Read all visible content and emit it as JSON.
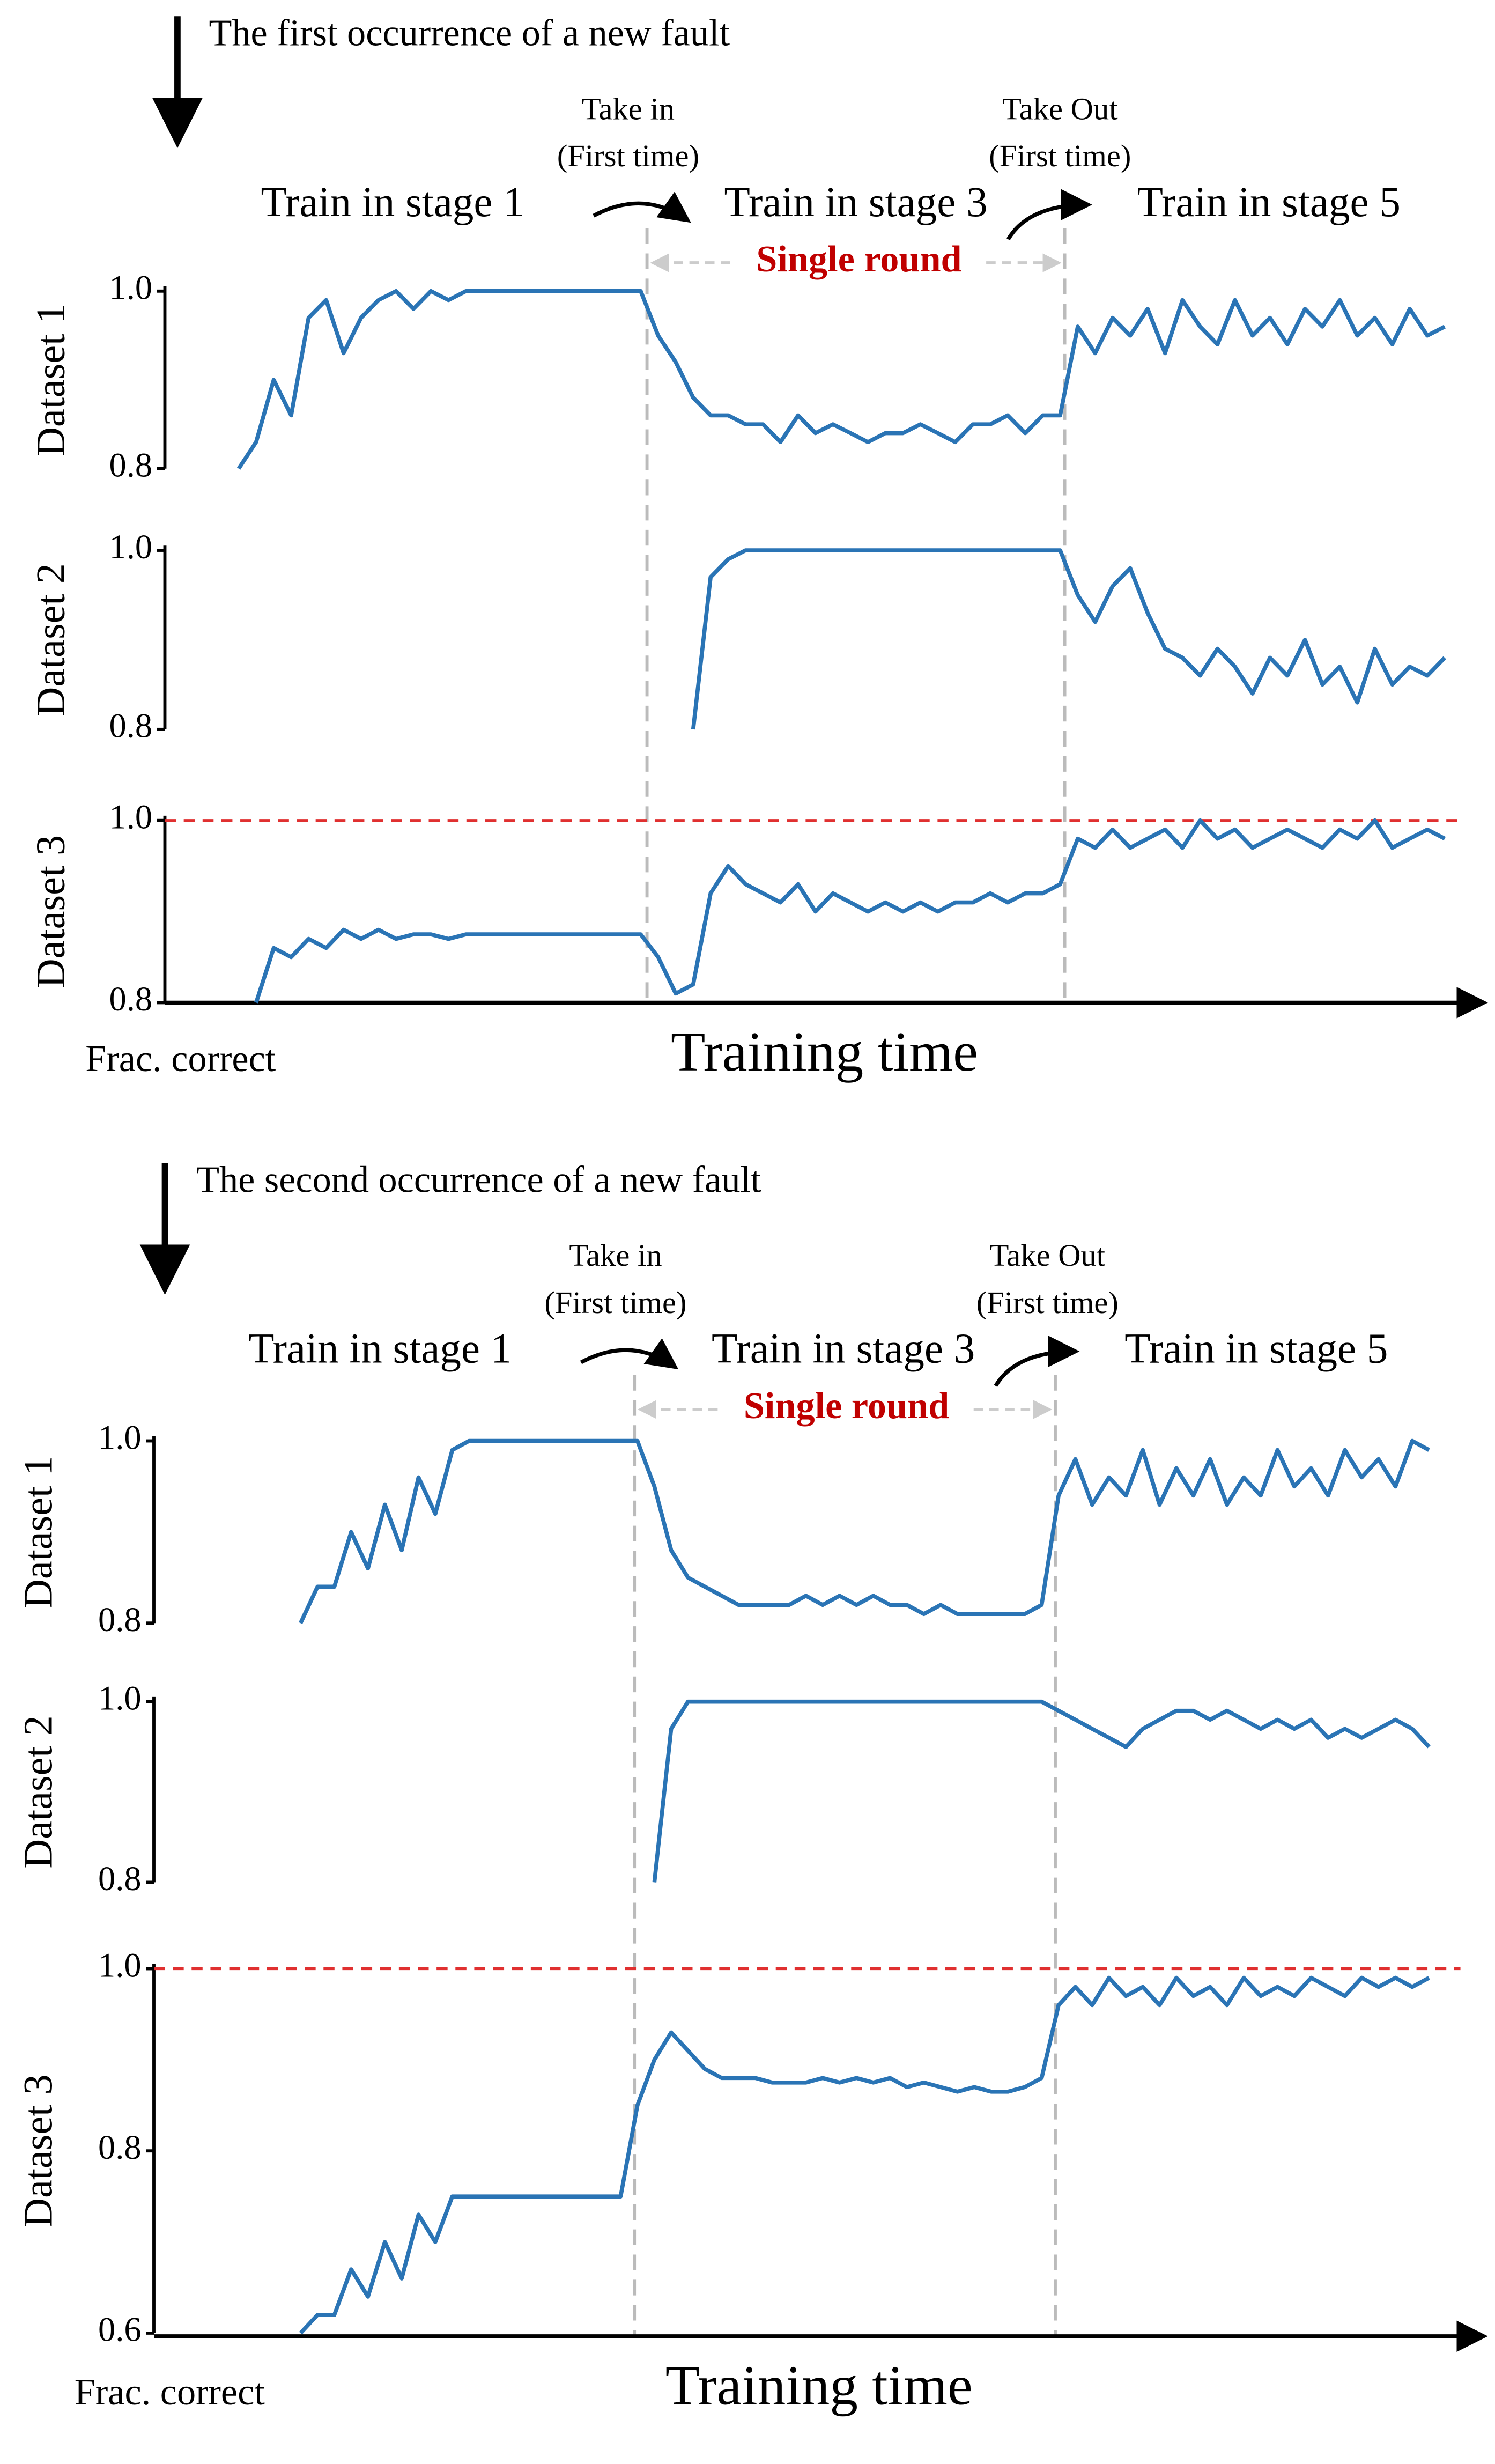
{
  "chart_data": [
    {
      "type": "line",
      "title": "The first occurrence of a new fault",
      "annotations": {
        "take_in": [
          "Take in",
          "(First time)"
        ],
        "take_out": [
          "Take Out",
          "(First time)"
        ],
        "stages": [
          "Train in stage 1",
          "Train in stage 3",
          "Train in stage 5"
        ],
        "round": "Single round"
      },
      "xlabel": "Training time",
      "ylabel_note": "Frac. correct",
      "panels": [
        {
          "ylabel": "Dataset 1",
          "ylim": [
            0.8,
            1.0
          ],
          "yticks": [
            0.8,
            {
              "value": 1.0,
              "label": "1.0"
            }
          ],
          "series": [
            {
              "color": "#2a74b5",
              "values": [
                0.8,
                0.83,
                0.9,
                0.86,
                0.97,
                0.99,
                0.93,
                0.97,
                0.99,
                1.0,
                0.98,
                1.0,
                0.99,
                1.0,
                1.0,
                1.0,
                1.0,
                1.0,
                1.0,
                1.0,
                1.0,
                1.0,
                1.0,
                1.0,
                0.95,
                0.92,
                0.88,
                0.86,
                0.86,
                0.85,
                0.85,
                0.83,
                0.86,
                0.84,
                0.85,
                0.84,
                0.83,
                0.84,
                0.84,
                0.85,
                0.84,
                0.83,
                0.85,
                0.85,
                0.86,
                0.84,
                0.86,
                0.86,
                0.96,
                0.93,
                0.97,
                0.95,
                0.98,
                0.93,
                0.99,
                0.96,
                0.94,
                0.99,
                0.95,
                0.97,
                0.94,
                0.98,
                0.96,
                0.99,
                0.95,
                0.97,
                0.94,
                0.98,
                0.95,
                0.96
              ]
            }
          ]
        },
        {
          "ylabel": "Dataset 2",
          "ylim": [
            0.8,
            1.0
          ],
          "yticks": [
            0.8,
            {
              "value": 1.0,
              "label": "1.0"
            }
          ],
          "series": [
            {
              "color": "#2a74b5",
              "values": [
                null,
                null,
                null,
                null,
                null,
                null,
                null,
                null,
                null,
                null,
                null,
                null,
                null,
                null,
                null,
                null,
                null,
                null,
                null,
                null,
                null,
                null,
                null,
                null,
                null,
                null,
                0.8,
                0.97,
                0.99,
                1.0,
                1.0,
                1.0,
                1.0,
                1.0,
                1.0,
                1.0,
                1.0,
                1.0,
                1.0,
                1.0,
                1.0,
                1.0,
                1.0,
                1.0,
                1.0,
                1.0,
                1.0,
                1.0,
                0.95,
                0.92,
                0.96,
                0.98,
                0.93,
                0.89,
                0.88,
                0.86,
                0.89,
                0.87,
                0.84,
                0.88,
                0.86,
                0.9,
                0.85,
                0.87,
                0.83,
                0.89,
                0.85,
                0.87,
                0.86,
                0.88
              ]
            }
          ]
        },
        {
          "ylabel": "Dataset 3",
          "ylim": [
            0.8,
            1.0
          ],
          "yticks": [
            0.8,
            {
              "value": 1.0,
              "label": "1.0"
            }
          ],
          "ref_line": {
            "value": 1.0,
            "color": "#e03030"
          },
          "series": [
            {
              "color": "#2a74b5",
              "values": [
                null,
                0.8,
                0.86,
                0.85,
                0.87,
                0.86,
                0.88,
                0.87,
                0.88,
                0.87,
                0.875,
                0.875,
                0.87,
                0.875,
                0.875,
                0.875,
                0.875,
                0.875,
                0.875,
                0.875,
                0.875,
                0.875,
                0.875,
                0.875,
                0.85,
                0.81,
                0.82,
                0.92,
                0.95,
                0.93,
                0.92,
                0.91,
                0.93,
                0.9,
                0.92,
                0.91,
                0.9,
                0.91,
                0.9,
                0.91,
                0.9,
                0.91,
                0.91,
                0.92,
                0.91,
                0.92,
                0.92,
                0.93,
                0.98,
                0.97,
                0.99,
                0.97,
                0.98,
                0.99,
                0.97,
                1.0,
                0.98,
                0.99,
                0.97,
                0.98,
                0.99,
                0.98,
                0.97,
                0.99,
                0.98,
                1.0,
                0.97,
                0.98,
                0.99,
                0.98
              ]
            }
          ]
        }
      ]
    },
    {
      "type": "line",
      "title": "The second occurrence of a new fault",
      "annotations": {
        "take_in": [
          "Take in",
          "(First time)"
        ],
        "take_out": [
          "Take Out",
          "(First time)"
        ],
        "stages": [
          "Train in stage 1",
          "Train in stage 3",
          "Train in stage 5"
        ],
        "round": "Single round"
      },
      "xlabel": "Training time",
      "ylabel_note": "Frac. correct",
      "panels": [
        {
          "ylabel": "Dataset 1",
          "ylim": [
            0.8,
            1.0
          ],
          "yticks": [
            0.8,
            {
              "value": 1.0,
              "label": "1.0"
            }
          ],
          "series": [
            {
              "color": "#2a74b5",
              "values": [
                0.8,
                null,
                0.8,
                0.84,
                0.84,
                0.9,
                0.86,
                0.93,
                0.88,
                0.96,
                0.92,
                0.99,
                1.0,
                1.0,
                1.0,
                1.0,
                1.0,
                1.0,
                1.0,
                1.0,
                1.0,
                1.0,
                1.0,
                0.95,
                0.88,
                0.85,
                0.84,
                0.83,
                0.82,
                0.82,
                0.82,
                0.82,
                0.83,
                0.82,
                0.83,
                0.82,
                0.83,
                0.82,
                0.82,
                0.81,
                0.82,
                0.81,
                0.81,
                0.81,
                0.81,
                0.81,
                0.82,
                0.94,
                0.98,
                0.93,
                0.96,
                0.94,
                0.99,
                0.93,
                0.97,
                0.94,
                0.98,
                0.93,
                0.96,
                0.94,
                0.99,
                0.95,
                0.97,
                0.94,
                0.99,
                0.96,
                0.98,
                0.95,
                1.0,
                0.99
              ]
            }
          ]
        },
        {
          "ylabel": "Dataset 2",
          "ylim": [
            0.8,
            1.0
          ],
          "yticks": [
            0.8,
            {
              "value": 1.0,
              "label": "1.0"
            }
          ],
          "series": [
            {
              "color": "#2a74b5",
              "values": [
                null,
                null,
                null,
                null,
                null,
                null,
                null,
                null,
                null,
                null,
                null,
                null,
                null,
                null,
                null,
                null,
                null,
                null,
                null,
                null,
                null,
                null,
                null,
                0.8,
                0.97,
                1.0,
                1.0,
                1.0,
                1.0,
                1.0,
                1.0,
                1.0,
                1.0,
                1.0,
                1.0,
                1.0,
                1.0,
                1.0,
                1.0,
                1.0,
                1.0,
                1.0,
                1.0,
                1.0,
                1.0,
                1.0,
                1.0,
                0.99,
                0.98,
                0.97,
                0.96,
                0.95,
                0.97,
                0.98,
                0.99,
                0.99,
                0.98,
                0.99,
                0.98,
                0.97,
                0.98,
                0.97,
                0.98,
                0.96,
                0.97,
                0.96,
                0.97,
                0.98,
                0.97,
                0.95
              ]
            }
          ]
        },
        {
          "ylabel": "Dataset 3",
          "ylim": [
            0.6,
            1.0
          ],
          "yticks": [
            0.6,
            0.8,
            {
              "value": 1.0,
              "label": "1.0"
            }
          ],
          "ref_line": {
            "value": 1.0,
            "color": "#e03030"
          },
          "series": [
            {
              "color": "#2a74b5",
              "values": [
                0.6,
                null,
                0.6,
                0.62,
                0.62,
                0.67,
                0.64,
                0.7,
                0.66,
                0.73,
                0.7,
                0.75,
                0.75,
                0.75,
                0.75,
                0.75,
                0.75,
                0.75,
                0.75,
                0.75,
                0.75,
                0.75,
                0.85,
                0.9,
                0.93,
                0.91,
                0.89,
                0.88,
                0.88,
                0.88,
                0.875,
                0.875,
                0.875,
                0.88,
                0.875,
                0.88,
                0.875,
                0.88,
                0.87,
                0.875,
                0.87,
                0.865,
                0.87,
                0.865,
                0.865,
                0.87,
                0.88,
                0.96,
                0.98,
                0.96,
                0.99,
                0.97,
                0.98,
                0.96,
                0.99,
                0.97,
                0.98,
                0.96,
                0.99,
                0.97,
                0.98,
                0.97,
                0.99,
                0.98,
                0.97,
                0.99,
                0.98,
                0.99,
                0.98,
                0.99
              ]
            }
          ]
        }
      ]
    }
  ]
}
